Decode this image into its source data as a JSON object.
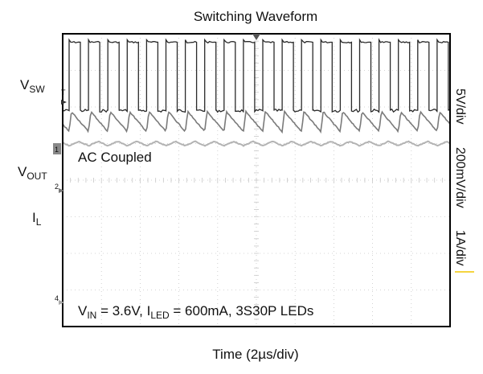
{
  "chart_data": {
    "type": "line",
    "title": "Switching Waveform",
    "xlabel": "Time (2µs/div)",
    "x_divisions": 10,
    "y_divisions": 8,
    "channels": [
      {
        "name_main": "V",
        "name_sub": "SW",
        "scale": "5V/div",
        "color": "#2a2a2a",
        "waveform": "square",
        "period_us": 1.0,
        "duty": 0.58,
        "high_div": 0.23,
        "low_div": 2.1,
        "noise_div": 0.04
      },
      {
        "name_main": "V",
        "name_sub": "OUT",
        "scale": "200mV/div",
        "color": "#7a7a7a",
        "waveform": "sawtooth",
        "period_us": 1.0,
        "center_div": 2.4,
        "pp_div": 0.55,
        "noise_div": 0.03
      },
      {
        "name_main": "I",
        "name_sub": "L",
        "scale": "1A/div",
        "color": "#b3b3b3",
        "waveform": "triangle",
        "period_us": 1.0,
        "center_div": 3.0,
        "pp_div": 0.12,
        "noise_div": 0.02
      }
    ],
    "annotations": {
      "coupling": "AC Coupled",
      "vin_main": "V",
      "vin_sub": "IN",
      "vin_value": " = 3.6V, ",
      "iled_main": "I",
      "iled_sub": "LED",
      "iled_value": " = 600mA, 3S30P LEDs"
    }
  }
}
